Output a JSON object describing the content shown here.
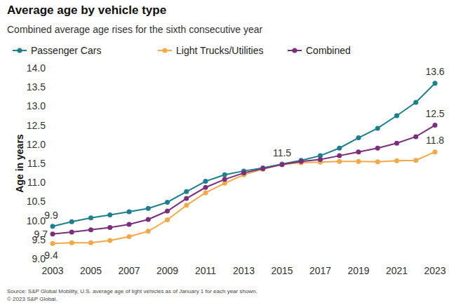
{
  "chart_data": {
    "type": "line",
    "title": "Average age by vehicle type",
    "subtitle": "Combined average age rises for the sixth consecutive year",
    "y_label": "Age in years",
    "source": "Source: S&P Global Mobility, U.S. average age of light vehicles as of January 1 for each year shown.",
    "copyright": "© 2023 S&P Global.",
    "x": [
      2003,
      2004,
      2005,
      2006,
      2007,
      2008,
      2009,
      2010,
      2011,
      2012,
      2013,
      2014,
      2015,
      2016,
      2017,
      2018,
      2019,
      2020,
      2021,
      2022,
      2023
    ],
    "xlim": [
      2003,
      2023
    ],
    "xticks": [
      2003,
      2005,
      2007,
      2009,
      2011,
      2013,
      2015,
      2017,
      2019,
      2021,
      2023
    ],
    "ylim": [
      9,
      14
    ],
    "yticks": [
      {
        "value": 9,
        "label": "9.0"
      },
      9.5,
      {
        "value": 10,
        "label": "10.0"
      },
      10.5,
      {
        "value": 11,
        "label": "11.0"
      },
      11.5,
      {
        "value": 12,
        "label": "12.0"
      },
      12.5,
      {
        "value": 13,
        "label": "13.0"
      },
      13.5,
      {
        "value": 14,
        "label": "14.0"
      }
    ],
    "grid": false,
    "legend": "top",
    "marker": "circle",
    "data_labels": true,
    "series": [
      {
        "name": "Passenger Cars",
        "color": "#1b7f8f",
        "values": [
          9.85,
          9.97,
          10.07,
          10.15,
          10.23,
          10.32,
          10.48,
          10.76,
          11.03,
          11.2,
          11.3,
          11.38,
          11.48,
          11.58,
          11.7,
          11.9,
          12.17,
          12.42,
          12.75,
          13.1,
          13.6
        ],
        "value_labels": [
          "9.9",
          null,
          null,
          null,
          null,
          null,
          null,
          null,
          null,
          null,
          null,
          null,
          null,
          null,
          null,
          null,
          null,
          null,
          null,
          null,
          "13.6"
        ]
      },
      {
        "name": "Light Trucks/Utilities",
        "color": "#f5a847",
        "values": [
          9.4,
          9.42,
          9.42,
          9.48,
          9.58,
          9.72,
          10.02,
          10.4,
          10.73,
          10.98,
          11.2,
          11.35,
          11.47,
          11.52,
          11.53,
          11.55,
          11.55,
          11.54,
          11.57,
          11.58,
          11.8
        ],
        "value_labels": [
          "9.4",
          null,
          null,
          null,
          null,
          null,
          null,
          null,
          null,
          null,
          null,
          null,
          null,
          null,
          null,
          null,
          null,
          null,
          null,
          null,
          "11.8"
        ]
      },
      {
        "name": "Combined",
        "color": "#7a2e7b",
        "values": [
          9.65,
          9.7,
          9.76,
          9.82,
          9.9,
          10.03,
          10.25,
          10.58,
          10.87,
          11.08,
          11.25,
          11.36,
          11.47,
          11.55,
          11.6,
          11.7,
          11.8,
          11.9,
          12.03,
          12.2,
          12.5
        ],
        "value_labels": [
          "9.7",
          null,
          null,
          null,
          null,
          null,
          null,
          null,
          null,
          null,
          null,
          null,
          "11.5",
          null,
          null,
          null,
          null,
          null,
          null,
          null,
          "12.5"
        ]
      }
    ]
  }
}
